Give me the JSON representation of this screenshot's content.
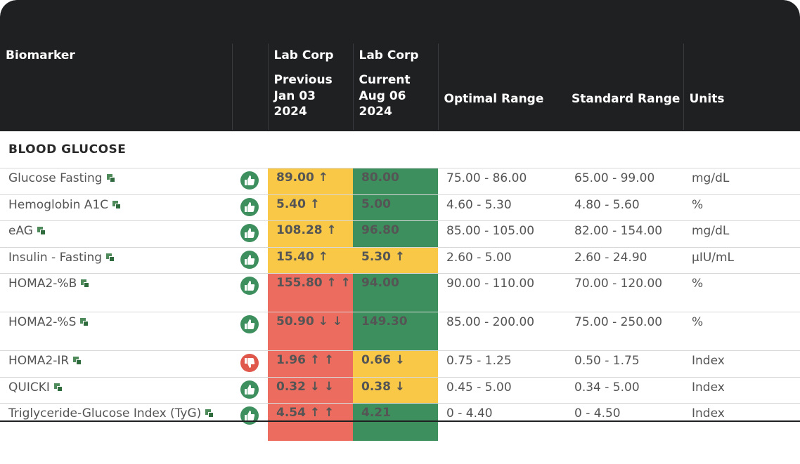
{
  "header": {
    "biomarker": "Biomarker",
    "lab_prev": "Lab Corp",
    "lab_cur": "Lab Corp",
    "prev_label": "Previous",
    "prev_date1": "Jan 03",
    "prev_date2": "2024",
    "cur_label": "Current",
    "cur_date1": "Aug 06",
    "cur_date2": "2024",
    "optimal": "Optimal Range",
    "standard": "Standard Range",
    "units": "Units"
  },
  "section": "BLOOD GLUCOSE",
  "colors": {
    "yellow": "#f8c846",
    "green": "#3e8f5e",
    "red": "#ec6c5f"
  },
  "rows": [
    {
      "name": "Glucose Fasting",
      "thumb": "thumbs-up",
      "prev": "89.00 ↑",
      "prev_color": "yellow",
      "cur": "80.00",
      "cur_color": "green",
      "optimal": "75.00 - 86.00",
      "standard": "65.00 - 99.00",
      "unit": "mg/dL"
    },
    {
      "name": "Hemoglobin A1C",
      "thumb": "thumbs-up",
      "prev": "5.40 ↑",
      "prev_color": "yellow",
      "cur": "5.00",
      "cur_color": "green",
      "optimal": "4.60 - 5.30",
      "standard": "4.80 - 5.60",
      "unit": "%"
    },
    {
      "name": "eAG",
      "thumb": "thumbs-up",
      "prev": "108.28 ↑",
      "prev_color": "yellow",
      "cur": "96.80",
      "cur_color": "green",
      "optimal": "85.00 - 105.00",
      "standard": "82.00 - 154.00",
      "unit": "mg/dL"
    },
    {
      "name": "Insulin - Fasting",
      "thumb": "thumbs-up",
      "prev": "15.40 ↑",
      "prev_color": "yellow",
      "cur": "5.30 ↑",
      "cur_color": "yellow",
      "optimal": "2.60 - 5.00",
      "standard": "2.60 - 24.90",
      "unit": "µIU/mL"
    },
    {
      "name": "HOMA2-%B",
      "thumb": "thumbs-up",
      "prev": "155.80 ↑ ↑",
      "prev_color": "red",
      "cur": "94.00",
      "cur_color": "green",
      "optimal": "90.00 - 110.00",
      "standard": "70.00 - 120.00",
      "unit": "%"
    },
    {
      "name": "HOMA2-%S",
      "thumb": "thumbs-up",
      "prev": "50.90 ↓ ↓",
      "prev_color": "red",
      "cur": "149.30",
      "cur_color": "green",
      "optimal": "85.00 - 200.00",
      "standard": "75.00 - 250.00",
      "unit": "%"
    },
    {
      "name": "HOMA2-IR",
      "thumb": "thumbs-down",
      "prev": "1.96 ↑ ↑",
      "prev_color": "red",
      "cur": "0.66 ↓",
      "cur_color": "yellow",
      "optimal": "0.75 - 1.25",
      "standard": "0.50 - 1.75",
      "unit": "Index"
    },
    {
      "name": "QUICKI",
      "thumb": "thumbs-up",
      "prev": "0.32 ↓ ↓",
      "prev_color": "red",
      "cur": "0.38 ↓",
      "cur_color": "yellow",
      "optimal": "0.45 - 5.00",
      "standard": "0.34 - 5.00",
      "unit": "Index"
    },
    {
      "name": "Triglyceride-Glucose Index (TyG)",
      "thumb": "thumbs-up",
      "prev": "4.54 ↑ ↑",
      "prev_color": "red",
      "cur": "4.21",
      "cur_color": "green",
      "optimal": "0 - 4.40",
      "standard": "0 - 4.50",
      "unit": "Index"
    }
  ]
}
